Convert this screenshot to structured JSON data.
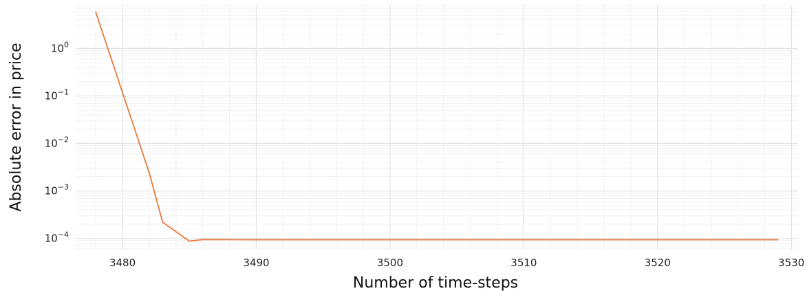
{
  "chart_data": {
    "type": "line",
    "title": "",
    "xlabel": "Number of time-steps",
    "ylabel": "Absolute error in price",
    "x_scale": "linear",
    "y_scale": "log",
    "xlim": [
      3476.5,
      3530.5
    ],
    "ylim": [
      6e-05,
      8
    ],
    "grid": true,
    "legend": "none",
    "x_ticks": [
      {
        "value": 3480,
        "label": "3480"
      },
      {
        "value": 3490,
        "label": "3490"
      },
      {
        "value": 3500,
        "label": "3500"
      },
      {
        "value": 3510,
        "label": "3510"
      },
      {
        "value": 3520,
        "label": "3520"
      },
      {
        "value": 3530,
        "label": "3530"
      }
    ],
    "y_ticks": [
      {
        "value": 1,
        "base": "10",
        "exp": "0"
      },
      {
        "value": 0.1,
        "base": "10",
        "exp": "−1"
      },
      {
        "value": 0.01,
        "base": "10",
        "exp": "−2"
      },
      {
        "value": 0.001,
        "base": "10",
        "exp": "−3"
      },
      {
        "value": 0.0001,
        "base": "10",
        "exp": "−4"
      }
    ],
    "series": [
      {
        "color": "#e8793a",
        "x": [
          3478,
          3482,
          3483,
          3485,
          3486,
          3490,
          3500,
          3510,
          3520,
          3529
        ],
        "y": [
          5.8,
          0.0024,
          0.00022,
          8.8e-05,
          9.5e-05,
          9.4e-05,
          9.4e-05,
          9.4e-05,
          9.4e-05,
          9.4e-05
        ]
      }
    ]
  }
}
